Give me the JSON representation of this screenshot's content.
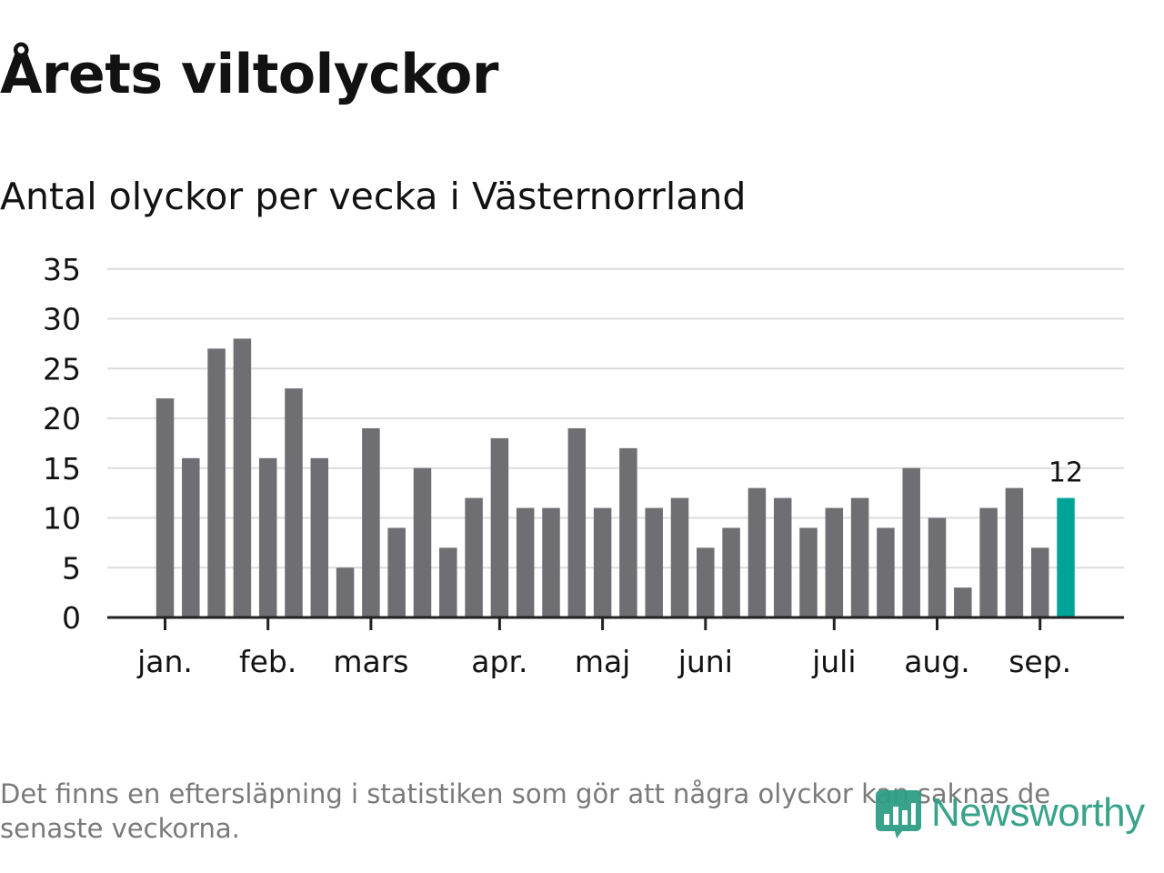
{
  "title": "Årets viltolyckor",
  "subtitle": "Antal olyckor per vecka i Västernorrland",
  "footnote": "Det finns en eftersläpning i statistiken som gör att några olyckor kan saknas de senaste veckorna.",
  "brand": {
    "name": "Newsworthy",
    "logo_icon": "bar-chart-badge-icon",
    "color": "#2e9e84"
  },
  "colors": {
    "bar": "#6f6e73",
    "highlight": "#00a398",
    "grid": "#dcdcdc",
    "axis": "#222222",
    "text": "#121212"
  },
  "chart_data": {
    "type": "bar",
    "title": "Antal olyckor per vecka i Västernorrland",
    "xlabel": "",
    "ylabel": "",
    "ylim": [
      0,
      35
    ],
    "yticks": [
      0,
      5,
      10,
      15,
      20,
      25,
      30,
      35
    ],
    "grid": true,
    "month_labels": [
      "jan.",
      "feb.",
      "mars",
      "apr.",
      "maj",
      "juni",
      "juli",
      "aug.",
      "sep."
    ],
    "month_label_bar_index": [
      0,
      4,
      8,
      13,
      17,
      21,
      26,
      30,
      34
    ],
    "values": [
      22,
      16,
      27,
      28,
      16,
      23,
      16,
      5,
      19,
      9,
      15,
      7,
      12,
      18,
      11,
      11,
      19,
      11,
      17,
      11,
      12,
      7,
      9,
      13,
      12,
      9,
      11,
      12,
      9,
      15,
      10,
      3,
      11,
      13,
      7,
      12
    ],
    "highlight_index": 35,
    "annotation": "12"
  }
}
